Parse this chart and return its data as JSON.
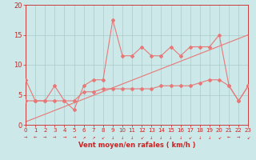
{
  "x": [
    0,
    1,
    2,
    3,
    4,
    5,
    6,
    7,
    8,
    9,
    10,
    11,
    12,
    13,
    14,
    15,
    16,
    17,
    18,
    19,
    20,
    21,
    22,
    23
  ],
  "y_gust": [
    7.5,
    4.0,
    4.0,
    6.5,
    4.0,
    2.5,
    6.5,
    7.5,
    7.5,
    17.5,
    11.5,
    11.5,
    13.0,
    11.5,
    11.5,
    13.0,
    11.5,
    13.0,
    13.0,
    13.0,
    15.0,
    6.5,
    4.0,
    6.5
  ],
  "y_mean": [
    4.0,
    4.0,
    4.0,
    4.0,
    4.0,
    4.0,
    5.5,
    5.5,
    6.0,
    6.0,
    6.0,
    6.0,
    6.0,
    6.0,
    6.5,
    6.5,
    6.5,
    6.5,
    7.0,
    7.5,
    7.5,
    6.5,
    4.0,
    6.5
  ],
  "trend_x": [
    0,
    23
  ],
  "trend_y": [
    0.5,
    15.0
  ],
  "background": "#cce8e8",
  "line_color": "#e87878",
  "grid_color": "#aacccc",
  "xlabel": "Vent moyen/en rafales ( km/h )",
  "ylim": [
    0,
    20
  ],
  "xlim": [
    0,
    23
  ],
  "yticks": [
    0,
    5,
    10,
    15,
    20
  ],
  "xticks": [
    0,
    1,
    2,
    3,
    4,
    5,
    6,
    7,
    8,
    9,
    10,
    11,
    12,
    13,
    14,
    15,
    16,
    17,
    18,
    19,
    20,
    21,
    22,
    23
  ],
  "tick_color": "#cc2222",
  "label_fontsize": 5.0,
  "ylabel_fontsize": 6.0,
  "xlabel_fontsize": 6.0,
  "linewidth": 0.8,
  "markersize": 2.0
}
